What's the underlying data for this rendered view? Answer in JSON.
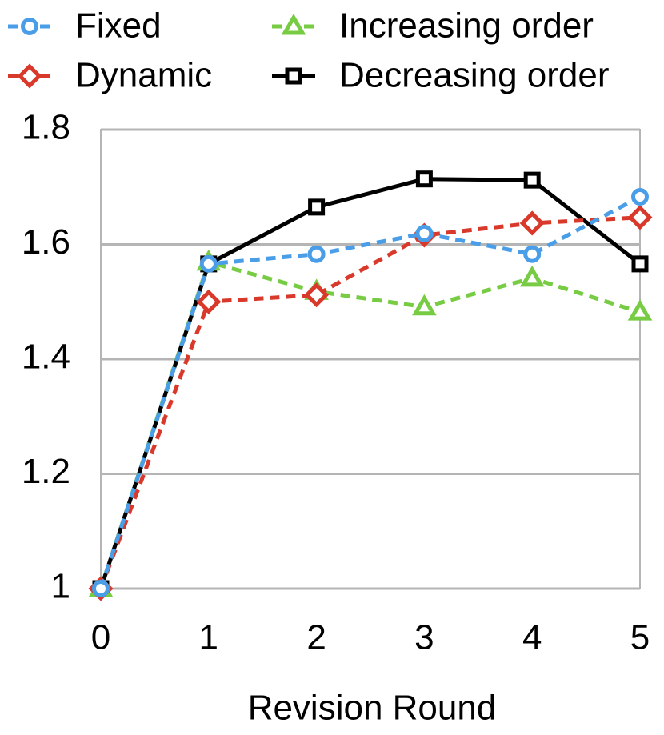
{
  "chart_data": {
    "type": "line",
    "x_label": "Revision Round",
    "x": [
      0,
      1,
      2,
      3,
      4,
      5
    ],
    "xlim": [
      0,
      5
    ],
    "xticks": [
      0,
      1,
      2,
      3,
      4,
      5
    ],
    "ylim": [
      1,
      1.8
    ],
    "yticks": [
      1,
      1.2,
      1.4,
      1.6,
      1.8
    ],
    "grid": true,
    "legend": "top",
    "series": [
      {
        "name": "Fixed",
        "color": "#4a9ee8",
        "marker": "circle",
        "dashed": true,
        "values": [
          1.0,
          1.566,
          1.583,
          1.619,
          1.583,
          1.683
        ]
      },
      {
        "name": "Dynamic",
        "color": "#d9392b",
        "marker": "diamond",
        "dashed": true,
        "values": [
          1.0,
          1.5,
          1.512,
          1.616,
          1.637,
          1.647
        ]
      },
      {
        "name": "Increasing order",
        "color": "#77cc44",
        "marker": "triangle",
        "dashed": true,
        "values": [
          1.0,
          1.569,
          1.518,
          1.491,
          1.541,
          1.482
        ]
      },
      {
        "name": "Decreasing order",
        "color": "#000000",
        "marker": "square",
        "dashed": false,
        "values": [
          1.0,
          1.566,
          1.665,
          1.714,
          1.712,
          1.566
        ]
      }
    ]
  }
}
